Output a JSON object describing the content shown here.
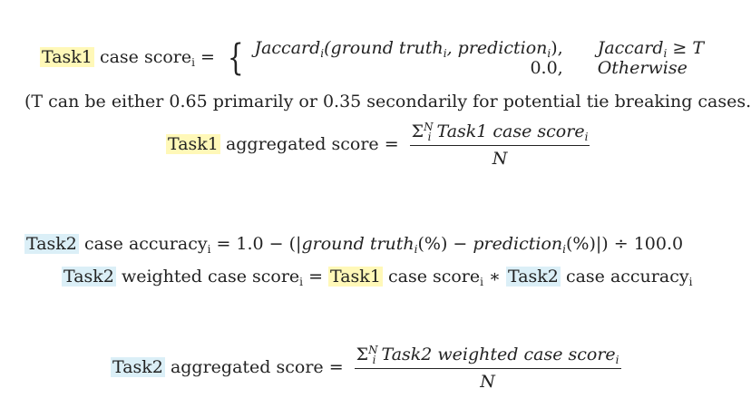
{
  "eq1": {
    "lhs_task": "Task1",
    "lhs_text": "case score",
    "sub": "i",
    "eq": "=",
    "case1_expr": "Jaccard",
    "case1_args": "(ground truth",
    "case1_mid": ", prediction",
    "case1_end": "),",
    "case1_cond": "Jaccard",
    "case1_cond_rel": "≥ T",
    "case2_expr": "0.0,",
    "case2_cond": "Otherwise"
  },
  "note": "(T can be either 0.65 primarily or 0.35 secondarily for potential tie breaking cases.)",
  "eq2": {
    "task": "Task1",
    "text": "aggregated score",
    "eq": "=",
    "sum": "Σ",
    "sum_sub": "i",
    "sum_sup": "N",
    "num_text": "Task1 case score",
    "num_sub": "i",
    "den": "N"
  },
  "eq3": {
    "task": "Task2",
    "text": "case accuracy",
    "sub": "i",
    "rhs_start": "= 1.0 − (|",
    "gt": "ground truth",
    "gt_sub": "i",
    "pct1": "(%) − ",
    "pred": "prediction",
    "pred_sub": "i",
    "rhs_end": "(%)|) ÷ 100.0"
  },
  "eq4": {
    "task": "Task2",
    "text": "weighted case score",
    "sub": "i",
    "eq": "=",
    "task1": "Task1",
    "text1": "case score",
    "sub1": "i",
    "times": "∗",
    "task2": "Task2",
    "text2": "case accuracy",
    "sub2": "i"
  },
  "eq5": {
    "task": "Task2",
    "text": "aggregated score",
    "eq": "=",
    "sum": "Σ",
    "sum_sub": "i",
    "sum_sup": "N",
    "num_text": "Task2 weighted case score",
    "num_sub": "i",
    "den": "N"
  }
}
